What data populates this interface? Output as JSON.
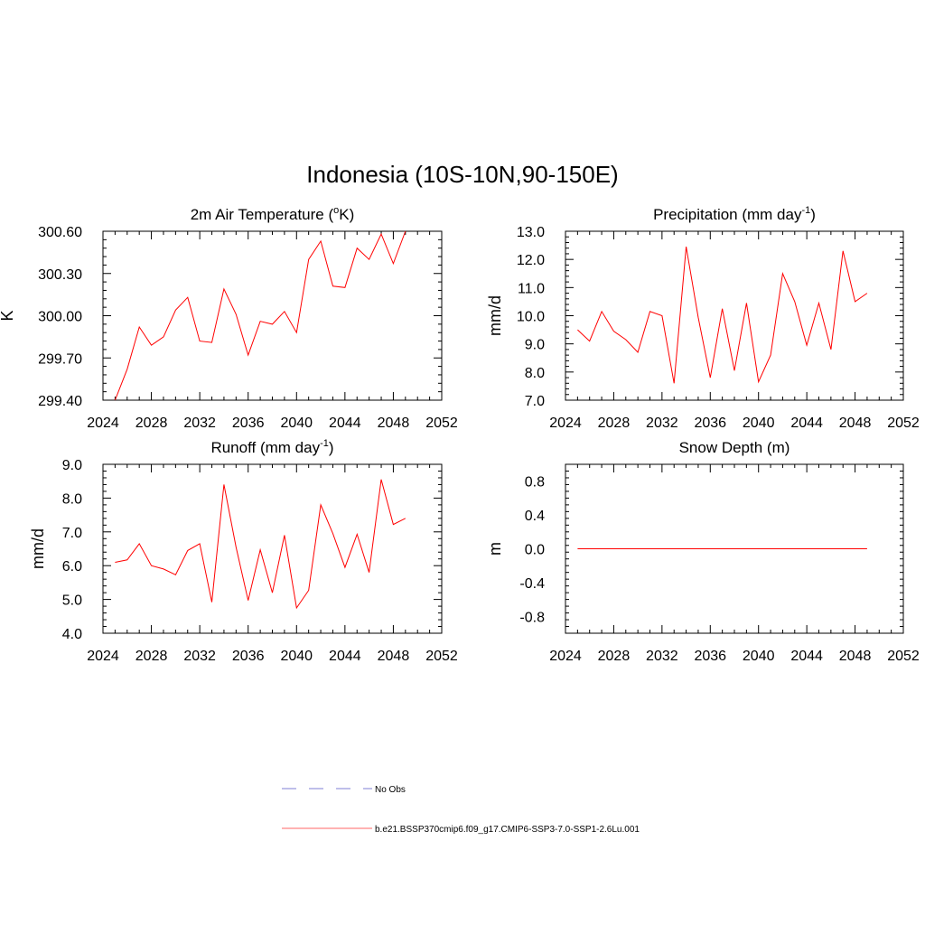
{
  "figure": {
    "title": "Indonesia (10S-10N,90-150E)"
  },
  "legend": {
    "entries": [
      {
        "label": "No Obs",
        "style": "dashed",
        "color": "#9999dd"
      },
      {
        "label": "b.e21.BSSP370cmip6.f09_g17.CMIP6-SSP3-7.0-SSP1-2.6Lu.001",
        "style": "solid",
        "color": "#ff6666"
      }
    ]
  },
  "chart_data": [
    {
      "type": "line",
      "title": "2m Air Temperature (",
      "title_sup": "o",
      "title_after": "K)",
      "xlabel": "",
      "ylabel": "K",
      "xlim": [
        2024,
        2052
      ],
      "ylim": [
        299.4,
        300.6
      ],
      "xticks": [
        "2024",
        "2028",
        "2032",
        "2036",
        "2040",
        "2044",
        "2048",
        "2052"
      ],
      "yticks": [
        "299.40",
        "299.70",
        "300.00",
        "300.30",
        "300.60"
      ],
      "grid": false,
      "line_color": "#ff0000",
      "series": [
        {
          "x": [
            2025,
            2026,
            2027,
            2028,
            2029,
            2030,
            2031,
            2032,
            2033,
            2034,
            2035,
            2036,
            2037,
            2038,
            2039,
            2040,
            2041,
            2042,
            2043,
            2044,
            2045,
            2046,
            2047,
            2048,
            2049
          ],
          "values": [
            299.4,
            299.62,
            299.92,
            299.79,
            299.85,
            300.04,
            300.13,
            299.82,
            299.81,
            300.19,
            300.01,
            299.72,
            299.96,
            299.94,
            300.03,
            299.88,
            300.4,
            300.53,
            300.21,
            300.2,
            300.48,
            300.4,
            300.58,
            300.37,
            300.6
          ]
        }
      ]
    },
    {
      "type": "line",
      "title": "Precipitation (mm day",
      "title_sup": "-1",
      "title_after": ")",
      "xlabel": "",
      "ylabel": "mm/d",
      "xlim": [
        2024,
        2052
      ],
      "ylim": [
        7.0,
        13.0
      ],
      "xticks": [
        "2024",
        "2028",
        "2032",
        "2036",
        "2040",
        "2044",
        "2048",
        "2052"
      ],
      "yticks": [
        "7.0",
        "8.0",
        "9.0",
        "10.0",
        "11.0",
        "12.0",
        "13.0"
      ],
      "grid": false,
      "line_color": "#ff0000",
      "series": [
        {
          "x": [
            2025,
            2026,
            2027,
            2028,
            2029,
            2030,
            2031,
            2032,
            2033,
            2034,
            2035,
            2036,
            2037,
            2038,
            2039,
            2040,
            2041,
            2042,
            2043,
            2044,
            2045,
            2046,
            2047,
            2048,
            2049
          ],
          "values": [
            9.5,
            9.1,
            10.15,
            9.45,
            9.15,
            8.7,
            10.15,
            10.0,
            7.6,
            12.45,
            9.95,
            7.8,
            10.25,
            8.05,
            10.45,
            7.65,
            8.6,
            11.5,
            10.5,
            8.95,
            10.45,
            8.8,
            12.3,
            10.5,
            10.8
          ]
        }
      ]
    },
    {
      "type": "line",
      "title": "Runoff (mm day",
      "title_sup": "-1",
      "title_after": ")",
      "xlabel": "",
      "ylabel": "mm/d",
      "xlim": [
        2024,
        2052
      ],
      "ylim": [
        4.0,
        9.0
      ],
      "xticks": [
        "2024",
        "2028",
        "2032",
        "2036",
        "2040",
        "2044",
        "2048",
        "2052"
      ],
      "yticks": [
        "4.0",
        "5.0",
        "6.0",
        "7.0",
        "8.0",
        "9.0"
      ],
      "grid": false,
      "line_color": "#ff0000",
      "series": [
        {
          "x": [
            2025,
            2026,
            2027,
            2028,
            2029,
            2030,
            2031,
            2032,
            2033,
            2034,
            2035,
            2036,
            2037,
            2038,
            2039,
            2040,
            2041,
            2042,
            2043,
            2044,
            2045,
            2046,
            2047,
            2048,
            2049
          ],
          "values": [
            6.1,
            6.17,
            6.65,
            6.0,
            5.9,
            5.73,
            6.45,
            6.65,
            4.92,
            8.4,
            6.55,
            4.97,
            6.47,
            5.2,
            6.9,
            4.75,
            5.27,
            7.8,
            6.95,
            5.95,
            6.93,
            5.8,
            8.55,
            7.22,
            7.4
          ]
        }
      ]
    },
    {
      "type": "line",
      "title": "Snow Depth (m)",
      "title_sup": "",
      "title_after": "",
      "xlabel": "",
      "ylabel": "m",
      "xlim": [
        2024,
        2052
      ],
      "ylim": [
        -1.0,
        1.0
      ],
      "xticks": [
        "2024",
        "2028",
        "2032",
        "2036",
        "2040",
        "2044",
        "2048",
        "2052"
      ],
      "yticks": [
        "-0.8",
        "-0.4",
        "0.0",
        "0.4",
        "0.8"
      ],
      "ytick_values": [
        -0.8,
        -0.4,
        0.0,
        0.4,
        0.8
      ],
      "grid": false,
      "line_color": "#ff0000",
      "series": [
        {
          "x": [
            2025,
            2026,
            2027,
            2028,
            2029,
            2030,
            2031,
            2032,
            2033,
            2034,
            2035,
            2036,
            2037,
            2038,
            2039,
            2040,
            2041,
            2042,
            2043,
            2044,
            2045,
            2046,
            2047,
            2048,
            2049
          ],
          "values": [
            0,
            0,
            0,
            0,
            0,
            0,
            0,
            0,
            0,
            0,
            0,
            0,
            0,
            0,
            0,
            0,
            0,
            0,
            0,
            0,
            0,
            0,
            0,
            0,
            0
          ]
        }
      ]
    }
  ]
}
